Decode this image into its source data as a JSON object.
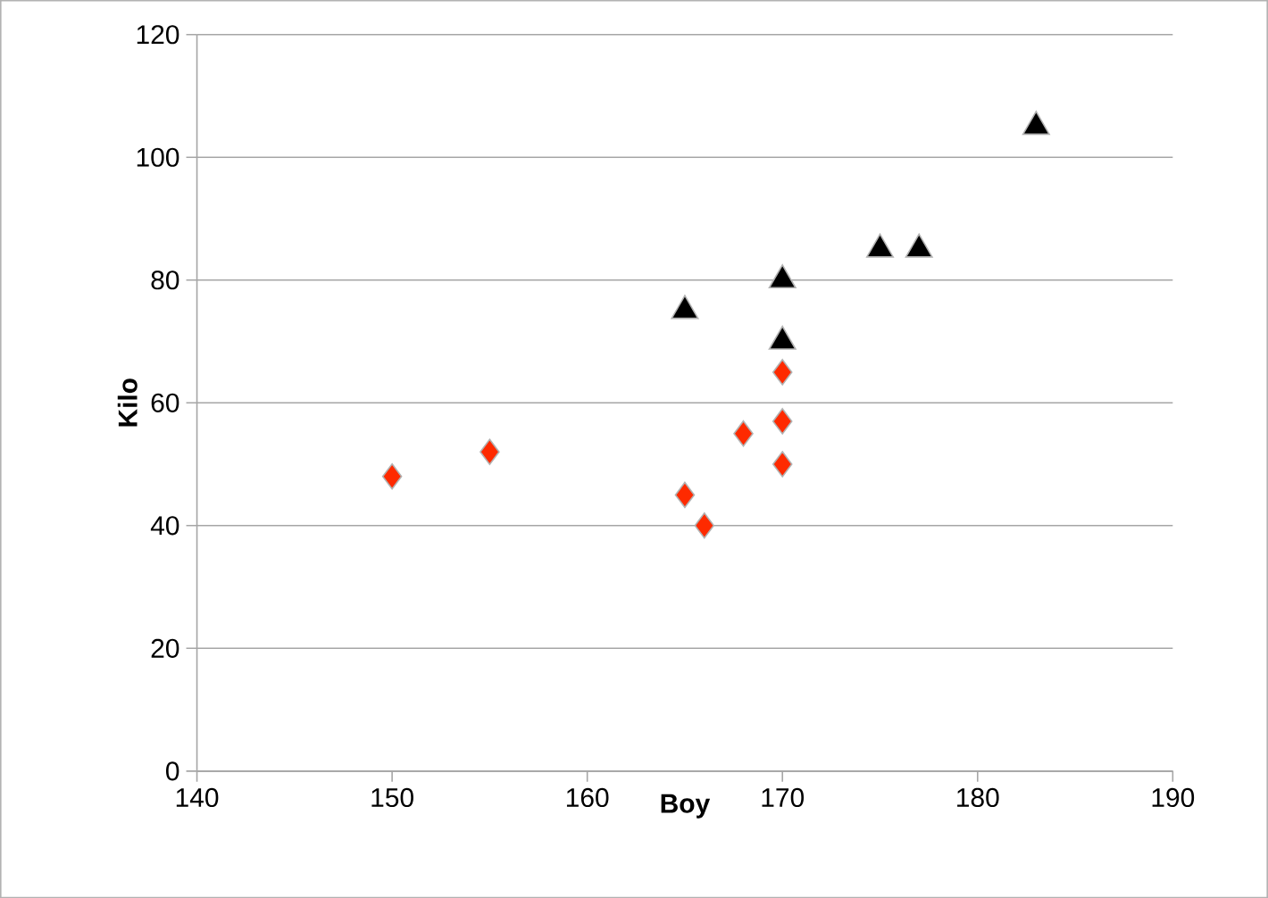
{
  "chart_data": {
    "type": "scatter",
    "xlabel": "Boy",
    "ylabel": "Kilo",
    "xlim": [
      140,
      190
    ],
    "xticks": [
      140,
      150,
      160,
      170,
      180,
      190
    ],
    "ylim": [
      0,
      120
    ],
    "yticks": [
      0,
      20,
      40,
      60,
      80,
      100,
      120
    ],
    "grid": "y",
    "series": [
      {
        "color": "#fe2a00",
        "marker": "diamond",
        "x": [
          150,
          155,
          165,
          166,
          168,
          170,
          170,
          170
        ],
        "values": [
          48,
          52,
          45,
          40,
          55,
          65,
          57,
          50
        ]
      },
      {
        "color": "#000000",
        "marker": "triangle",
        "x": [
          165,
          170,
          170,
          175,
          177,
          183
        ],
        "values": [
          75,
          80,
          70,
          85,
          85,
          105
        ]
      }
    ]
  }
}
